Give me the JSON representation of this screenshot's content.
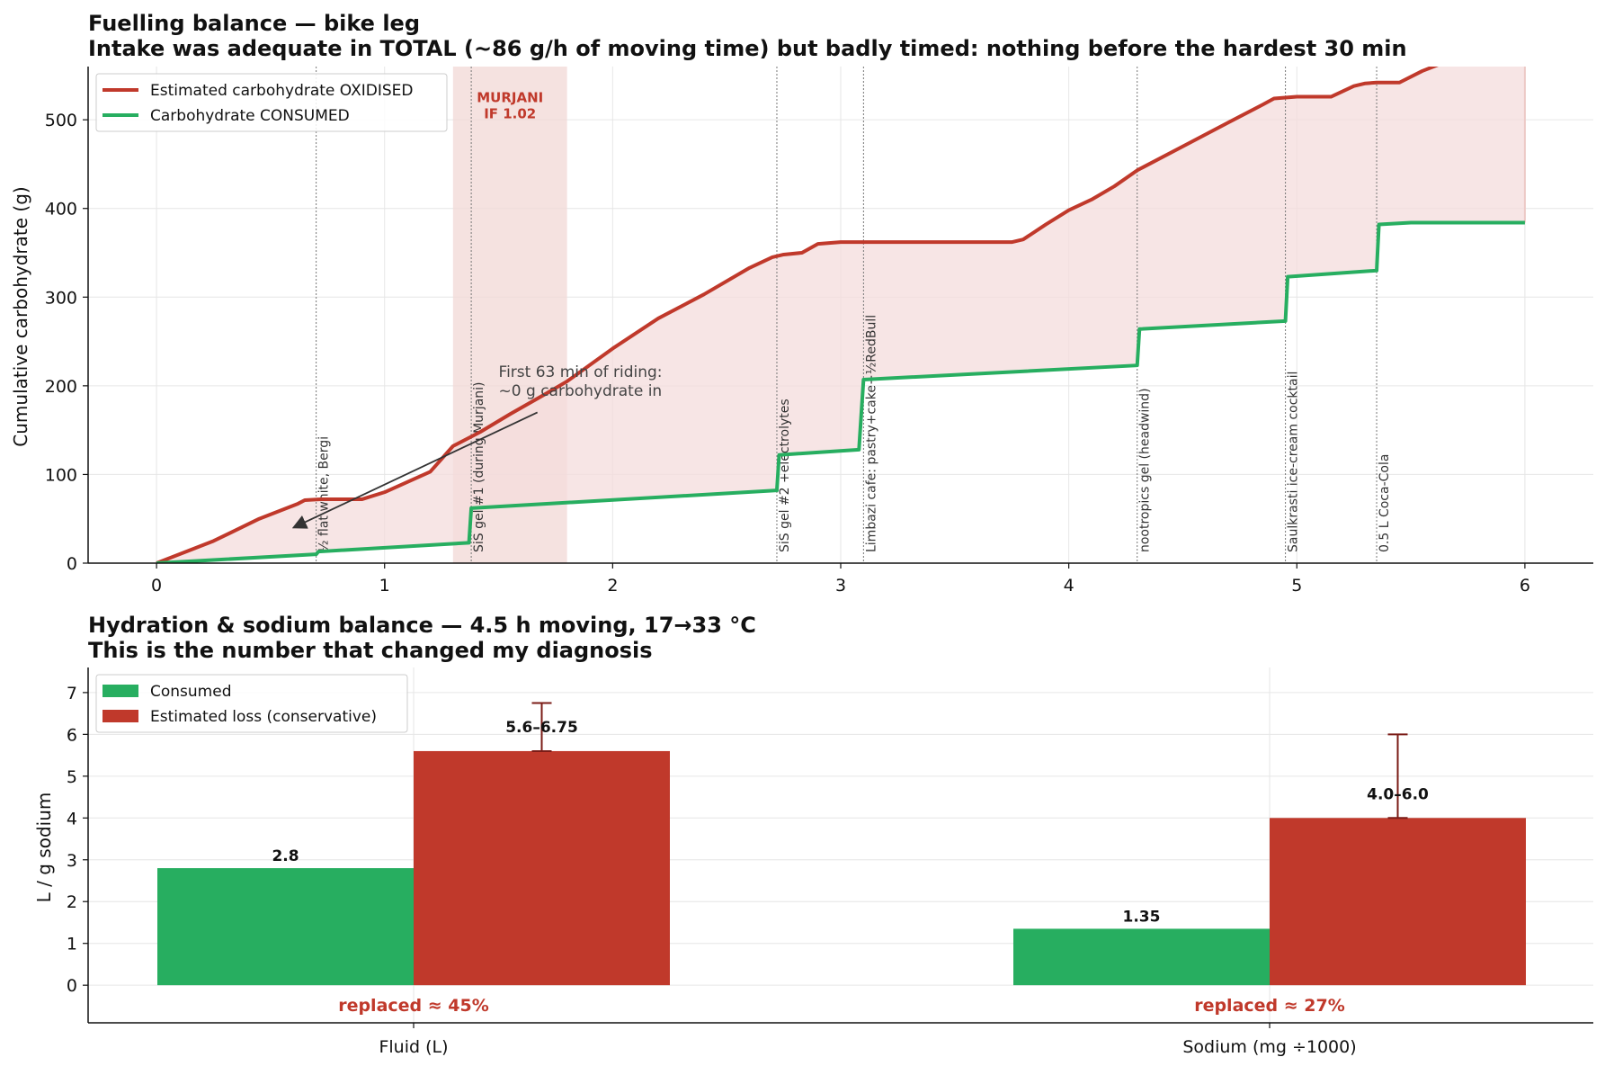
{
  "colors": {
    "oxidised": "#c0392b",
    "consumed": "#27ae60",
    "deficit_fill": "#f4dcdc",
    "shade": "#f2d8d6",
    "error_bar": "#7b1c17",
    "annotation": "#333333"
  },
  "chart_data": [
    {
      "type": "line",
      "title": "Fuelling balance — bike leg",
      "subtitle": "Intake was adequate in TOTAL (~86 g/h of moving time) but badly timed: nothing before the hardest 30 min",
      "xlabel": "",
      "ylabel": "Cumulative carbohydrate (g)",
      "xlim": [
        -0.3,
        6.3
      ],
      "ylim": [
        0,
        560
      ],
      "xticks": [
        0,
        1,
        2,
        3,
        4,
        5,
        6
      ],
      "yticks": [
        0,
        100,
        200,
        300,
        400,
        500
      ],
      "grid": true,
      "legend_placement": "top-left",
      "series": [
        {
          "name": "Estimated carbohydrate OXIDISED",
          "x": [
            0,
            0.25,
            0.45,
            0.62,
            0.65,
            0.72,
            0.9,
            1.0,
            1.2,
            1.3,
            1.42,
            1.55,
            1.7,
            1.8,
            2.0,
            2.2,
            2.4,
            2.6,
            2.7,
            2.75,
            2.83,
            2.9,
            3.0,
            3.2,
            3.5,
            3.75,
            3.8,
            3.9,
            4.0,
            4.1,
            4.2,
            4.3,
            4.5,
            4.7,
            4.85,
            4.9,
            5.0,
            5.15,
            5.25,
            5.3,
            5.35,
            5.45,
            5.55,
            5.7
          ],
          "values": [
            0,
            25,
            50,
            67,
            71,
            72,
            72,
            80,
            103,
            132,
            148,
            168,
            190,
            205,
            242,
            276,
            303,
            333,
            345,
            348,
            350,
            360,
            362,
            362,
            362,
            362,
            365,
            382,
            398,
            410,
            425,
            443,
            470,
            497,
            517,
            524,
            526,
            526,
            538,
            541,
            542,
            542,
            555,
            570
          ]
        },
        {
          "name": "Carbohydrate CONSUMED",
          "x": [
            0,
            0.7,
            0.71,
            1.37,
            1.38,
            2.72,
            2.73,
            3.08,
            3.1,
            4.3,
            4.31,
            4.95,
            4.96,
            5.35,
            5.36,
            5.5,
            6.0
          ],
          "values": [
            0,
            10,
            13,
            23,
            62,
            82,
            122,
            128,
            207,
            223,
            264,
            273,
            323,
            330,
            382,
            384,
            384
          ]
        }
      ],
      "shaded_band": {
        "x": [
          1.3,
          1.8
        ],
        "label_lines": [
          "MURJANI",
          "IF 1.02"
        ]
      },
      "events": [
        {
          "x": 0.7,
          "label": "½ flat white, Bergi"
        },
        {
          "x": 1.38,
          "label": "SiS gel #1 (during Murjani)"
        },
        {
          "x": 2.72,
          "label": "SiS gel #2 +electrolytes"
        },
        {
          "x": 3.1,
          "label": "Limbazi cafe: pastry+cake+½RedBull"
        },
        {
          "x": 4.3,
          "label": "nootropics gel (headwind)"
        },
        {
          "x": 4.95,
          "label": "Saulkrasti ice-cream cocktail"
        },
        {
          "x": 5.35,
          "label": "0.5 L Coca-Cola"
        }
      ],
      "annotation": {
        "lines": [
          "First 63 min of riding:",
          "~0 g carbohydrate in"
        ],
        "text_at": [
          1.5,
          210
        ],
        "arrow_from": [
          1.67,
          170
        ],
        "arrow_to": [
          0.6,
          40
        ]
      }
    },
    {
      "type": "bar",
      "title": "Hydration & sodium balance — 4.5 h moving, 17→33 °C",
      "subtitle": "This is the number that changed my diagnosis",
      "xlabel": "",
      "ylabel": "L  /  g sodium",
      "ylim": [
        -0.9,
        7.6
      ],
      "yticks": [
        0,
        1,
        2,
        3,
        4,
        5,
        6,
        7
      ],
      "grid": true,
      "legend_placement": "top-left",
      "categories": [
        "Fluid (L)",
        "Sodium (mg ÷1000)"
      ],
      "series": [
        {
          "name": "Consumed",
          "values": [
            2.8,
            1.35
          ],
          "labels": [
            "2.8",
            "1.35"
          ]
        },
        {
          "name": "Estimated loss (conservative)",
          "values": [
            5.6,
            4.0
          ],
          "error_upper": [
            6.75,
            6.0
          ],
          "labels": [
            "5.6–6.75",
            "4.0–6.0"
          ]
        }
      ],
      "replaced_labels": [
        "replaced ≈ 45%",
        "replaced ≈ 27%"
      ]
    }
  ]
}
